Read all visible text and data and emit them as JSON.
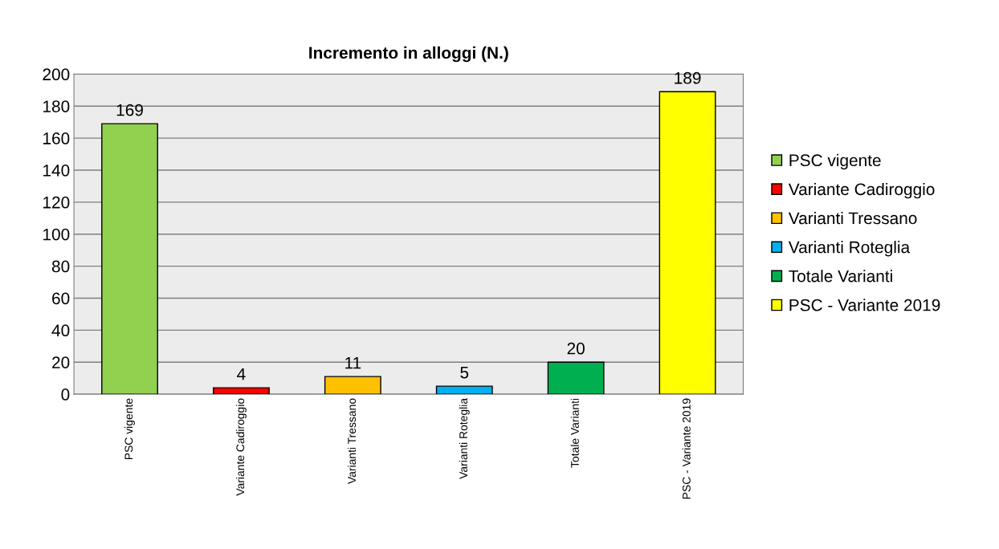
{
  "chart_data": {
    "type": "bar",
    "title": "Incremento in alloggi (N.)",
    "categories": [
      "PSC vigente",
      "Variante Cadiroggio",
      "Varianti Tressano",
      "Varianti Roteglia",
      "Totale Varianti",
      "PSC - Variante 2019"
    ],
    "series": [
      {
        "name": "PSC vigente",
        "color": "#92d050",
        "values": [
          169,
          null,
          null,
          null,
          null,
          null
        ]
      },
      {
        "name": "Variante Cadiroggio",
        "color": "#ff0000",
        "values": [
          null,
          4,
          null,
          null,
          null,
          null
        ]
      },
      {
        "name": "Varianti Tressano",
        "color": "#ffc000",
        "values": [
          null,
          null,
          11,
          null,
          null,
          null
        ]
      },
      {
        "name": "Varianti Roteglia",
        "color": "#00b0f0",
        "values": [
          null,
          null,
          null,
          5,
          null,
          null
        ]
      },
      {
        "name": "Totale Varianti",
        "color": "#00b050",
        "values": [
          null,
          null,
          null,
          null,
          20,
          null
        ]
      },
      {
        "name": "PSC - Variante 2019",
        "color": "#ffff00",
        "values": [
          null,
          null,
          null,
          null,
          null,
          189
        ]
      }
    ],
    "ylim": [
      0,
      200
    ],
    "yticks": [
      0,
      20,
      40,
      60,
      80,
      100,
      120,
      140,
      160,
      180,
      200
    ],
    "grid": "y",
    "legend": "right",
    "data_labels": true
  }
}
